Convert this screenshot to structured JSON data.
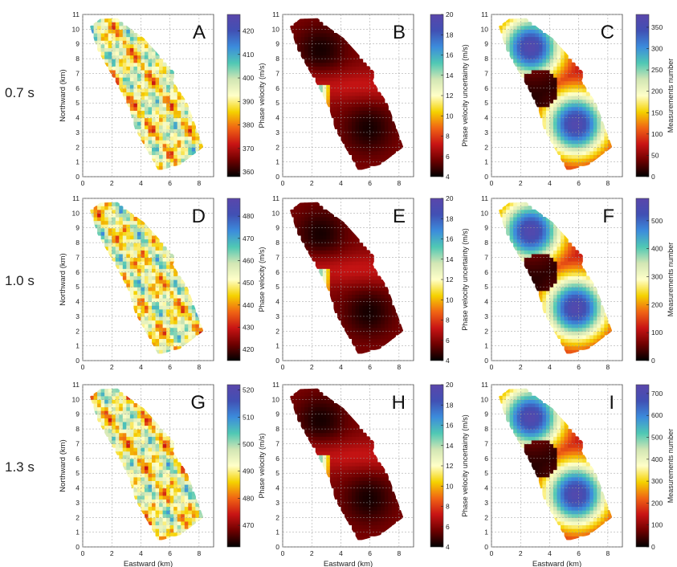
{
  "row_labels": [
    "0.7 s",
    "1.0 s",
    "1.3 s"
  ],
  "colormap": [
    "#000000",
    "#6e0000",
    "#c81414",
    "#f06414",
    "#f5d200",
    "#ffffc8",
    "#d2e6b4",
    "#50c8b4",
    "#3c8cdc",
    "#4150b4",
    "#5a46aa"
  ],
  "chart_data": [
    {
      "type": "heatmap",
      "panel": "A",
      "kind": "velocity",
      "xlabel": "",
      "ylabel": "Northward (km)",
      "xlim": [
        0,
        9
      ],
      "ylim": [
        0,
        11
      ],
      "xticks": [
        0,
        2,
        4,
        6,
        8
      ],
      "yticks": [
        0,
        1,
        2,
        3,
        4,
        5,
        6,
        7,
        8,
        9,
        10,
        11
      ],
      "colorbar": {
        "label": "Phase velocity (m/s)",
        "range": [
          358,
          427
        ],
        "ticks": [
          360,
          370,
          380,
          390,
          400,
          410,
          420
        ]
      },
      "grid": true
    },
    {
      "type": "heatmap",
      "panel": "B",
      "kind": "uncertainty",
      "xlabel": "",
      "ylabel": "",
      "xlim": [
        0,
        9
      ],
      "ylim": [
        0,
        11
      ],
      "xticks": [
        0,
        2,
        4,
        6,
        8
      ],
      "yticks": [
        0,
        1,
        2,
        3,
        4,
        5,
        6,
        7,
        8,
        9,
        10,
        11
      ],
      "colorbar": {
        "label": "Phase velocity uncertainty (m/s)",
        "range": [
          4,
          20
        ],
        "ticks": [
          4,
          6,
          8,
          10,
          12,
          14,
          16,
          18,
          20
        ]
      },
      "grid": true
    },
    {
      "type": "heatmap",
      "panel": "C",
      "kind": "count",
      "xlabel": "",
      "ylabel": "",
      "xlim": [
        0,
        9
      ],
      "ylim": [
        0,
        11
      ],
      "xticks": [
        0,
        2,
        4,
        6,
        8
      ],
      "yticks": [
        0,
        1,
        2,
        3,
        4,
        5,
        6,
        7,
        8,
        9,
        10,
        11
      ],
      "colorbar": {
        "label": "Measurements number",
        "range": [
          0,
          380
        ],
        "ticks": [
          0,
          50,
          100,
          150,
          200,
          250,
          300,
          350
        ]
      },
      "grid": true
    },
    {
      "type": "heatmap",
      "panel": "D",
      "kind": "velocity",
      "xlabel": "",
      "ylabel": "Northward (km)",
      "xlim": [
        0,
        9
      ],
      "ylim": [
        0,
        11
      ],
      "xticks": [
        0,
        2,
        4,
        6,
        8
      ],
      "yticks": [
        0,
        1,
        2,
        3,
        4,
        5,
        6,
        7,
        8,
        9,
        10,
        11
      ],
      "colorbar": {
        "label": "Phase velocity (m/s)",
        "range": [
          415,
          488
        ],
        "ticks": [
          420,
          430,
          440,
          450,
          460,
          470,
          480
        ]
      },
      "grid": true
    },
    {
      "type": "heatmap",
      "panel": "E",
      "kind": "uncertainty",
      "xlabel": "",
      "ylabel": "",
      "xlim": [
        0,
        9
      ],
      "ylim": [
        0,
        11
      ],
      "xticks": [
        0,
        2,
        4,
        6,
        8
      ],
      "yticks": [
        0,
        1,
        2,
        3,
        4,
        5,
        6,
        7,
        8,
        9,
        10,
        11
      ],
      "colorbar": {
        "label": "Phase velocity uncertainty (m/s)",
        "range": [
          4,
          20
        ],
        "ticks": [
          4,
          6,
          8,
          10,
          12,
          14,
          16,
          18,
          20
        ]
      },
      "grid": true
    },
    {
      "type": "heatmap",
      "panel": "F",
      "kind": "count",
      "xlabel": "",
      "ylabel": "",
      "xlim": [
        0,
        9
      ],
      "ylim": [
        0,
        11
      ],
      "xticks": [
        0,
        2,
        4,
        6,
        8
      ],
      "yticks": [
        0,
        1,
        2,
        3,
        4,
        5,
        6,
        7,
        8,
        9,
        10,
        11
      ],
      "colorbar": {
        "label": "Measurements number",
        "range": [
          0,
          580
        ],
        "ticks": [
          0,
          100,
          200,
          300,
          400,
          500
        ]
      },
      "grid": true
    },
    {
      "type": "heatmap",
      "panel": "G",
      "kind": "velocity",
      "xlabel": "Eastward (km)",
      "ylabel": "Northward (km)",
      "xlim": [
        0,
        9
      ],
      "ylim": [
        0,
        11
      ],
      "xticks": [
        0,
        2,
        4,
        6,
        8
      ],
      "yticks": [
        0,
        1,
        2,
        3,
        4,
        5,
        6,
        7,
        8,
        9,
        10,
        11
      ],
      "colorbar": {
        "label": "Phase velocity (m/s)",
        "range": [
          462,
          522
        ],
        "ticks": [
          470,
          480,
          490,
          500,
          510,
          520
        ]
      },
      "grid": true
    },
    {
      "type": "heatmap",
      "panel": "H",
      "kind": "uncertainty",
      "xlabel": "Eastward (km)",
      "ylabel": "",
      "xlim": [
        0,
        9
      ],
      "ylim": [
        0,
        11
      ],
      "xticks": [
        0,
        2,
        4,
        6,
        8
      ],
      "yticks": [
        0,
        1,
        2,
        3,
        4,
        5,
        6,
        7,
        8,
        9,
        10,
        11
      ],
      "colorbar": {
        "label": "Phase velocity uncertainty (m/s)",
        "range": [
          4,
          20
        ],
        "ticks": [
          4,
          6,
          8,
          10,
          12,
          14,
          16,
          18,
          20
        ]
      },
      "grid": true
    },
    {
      "type": "heatmap",
      "panel": "I",
      "kind": "count",
      "xlabel": "Eastward (km)",
      "ylabel": "",
      "xlim": [
        0,
        9
      ],
      "ylim": [
        0,
        11
      ],
      "xticks": [
        0,
        2,
        4,
        6,
        8
      ],
      "yticks": [
        0,
        1,
        2,
        3,
        4,
        5,
        6,
        7,
        8,
        9,
        10,
        11
      ],
      "colorbar": {
        "label": "Measurements number",
        "range": [
          0,
          740
        ],
        "ticks": [
          0,
          100,
          200,
          300,
          400,
          500,
          600,
          700
        ]
      },
      "grid": true
    }
  ]
}
